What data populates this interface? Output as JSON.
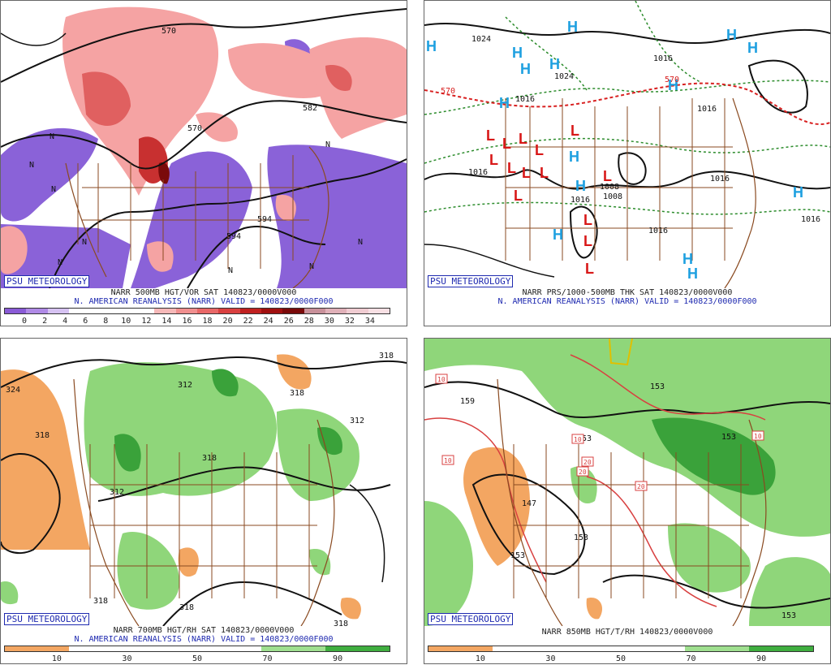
{
  "stamp": "PSU METEOROLOGY",
  "panels": {
    "p1": {
      "title": "NARR 500MB HGT/VOR SAT 140823/0000V000",
      "subtitle": "N. AMERICAN REANALYSIS (NARR) VALID = 140823/0000F000",
      "colorbar_colors": [
        "#8a5bd6",
        "#b08ae6",
        "#d6c2f2",
        "#ffffff",
        "#ffffff",
        "#ffffff",
        "#ffffff",
        "#f6b8b8",
        "#f08f8f",
        "#e86767",
        "#d94040",
        "#c02020",
        "#a01010",
        "#7a0a0a",
        "#c8909a",
        "#e0b0b8",
        "#f0ccd2",
        "#f8e0e4"
      ],
      "ticks": [
        "0",
        "2",
        "4",
        "6",
        "8",
        "10",
        "12",
        "14",
        "16",
        "18",
        "20",
        "22",
        "24",
        "26",
        "28",
        "30",
        "32",
        "34"
      ],
      "labels": [
        "570",
        "570",
        "582",
        "594",
        "594"
      ]
    },
    "p2": {
      "title": "NARR PRS/1000-500MB THK SAT 140823/0000V000",
      "subtitle": "N. AMERICAN REANALYSIS (NARR) VALID = 140823/0000F000",
      "labels": [
        "1024",
        "1024",
        "1016",
        "1016",
        "1016",
        "1016",
        "1016",
        "1016",
        "1008",
        "1008",
        "1016",
        "1016",
        "570",
        "570"
      ]
    },
    "p3": {
      "title": "NARR 700MB HGT/RH SAT 140823/0000V000",
      "subtitle": "N. AMERICAN REANALYSIS (NARR) VALID = 140823/0000F000",
      "colorbar_colors": [
        "#f3a662",
        "#ffffff",
        "#ffffff",
        "#ffffff",
        "#9fdf8f",
        "#3fae3f"
      ],
      "ticks": [
        "10",
        "30",
        "50",
        "70",
        "90"
      ],
      "labels": [
        "324",
        "318",
        "318",
        "318",
        "312",
        "312",
        "312",
        "318",
        "318",
        "318",
        "318"
      ]
    },
    "p4": {
      "title": "NARR 850MB HGT/T/RH 140823/0000V000",
      "colorbar_colors": [
        "#f3a662",
        "#ffffff",
        "#ffffff",
        "#ffffff",
        "#9fdf8f",
        "#3fae3f"
      ],
      "ticks": [
        "10",
        "30",
        "50",
        "70",
        "90"
      ],
      "labels": [
        "159",
        "153",
        "153",
        "153",
        "153",
        "147",
        "153",
        "153"
      ],
      "temp_labels": [
        "10",
        "10",
        "10",
        "20",
        "20",
        "20",
        "10"
      ]
    }
  }
}
